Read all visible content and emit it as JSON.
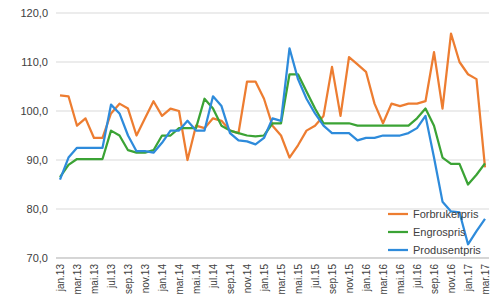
{
  "chart_data": {
    "type": "line",
    "categories": [
      "jan.13",
      null,
      "mar.13",
      null,
      "mai.13",
      null,
      "jul.13",
      null,
      "sep.13",
      null,
      "nov.13",
      null,
      "jan.14",
      null,
      "mar.14",
      null,
      "mai.14",
      null,
      "jul.14",
      null,
      "sep.14",
      null,
      "nov.14",
      null,
      "jan.15",
      null,
      "mar.15",
      null,
      "mai.15",
      null,
      "jul.15",
      null,
      "sep.15",
      null,
      "nov.15",
      null,
      "jan.16",
      null,
      "mar.16",
      null,
      "mai.16",
      null,
      "jul.16",
      null,
      "sep.16",
      null,
      "nov.16",
      null,
      "jan.17",
      null,
      "mar.17"
    ],
    "series": [
      {
        "name": "Forbrukerpris",
        "color": "#ED7D31",
        "values": [
          103.2,
          103,
          97,
          98.5,
          94.5,
          94.5,
          99.5,
          101.5,
          100.5,
          95,
          98.5,
          102,
          99,
          100.5,
          100,
          90,
          97,
          96.5,
          98.5,
          98,
          96,
          95.5,
          106,
          106,
          102.5,
          97,
          95,
          90.5,
          93,
          96,
          97,
          99,
          109,
          99,
          111,
          109.5,
          108,
          101.5,
          97.5,
          101.5,
          101,
          101.5,
          101.5,
          102,
          112,
          100.5,
          115.8,
          110,
          107.5,
          106.5,
          88.5
        ]
      },
      {
        "name": "Engrospris",
        "color": "#3BA335",
        "values": [
          86.5,
          89,
          90.2,
          90.2,
          90.2,
          90.2,
          96,
          95,
          92,
          91.5,
          91.5,
          92,
          95,
          95,
          96.5,
          96.5,
          96.5,
          102.5,
          100.5,
          97,
          96,
          95.5,
          95,
          94.8,
          95,
          97.5,
          97.5,
          107.5,
          107.5,
          104,
          100.5,
          97.5,
          97.5,
          97.5,
          97.5,
          97,
          97,
          97,
          97,
          97,
          97,
          97,
          98.5,
          100.5,
          97,
          90.5,
          89.2,
          89.2,
          85,
          87,
          89.3
        ]
      },
      {
        "name": "Produsentpris",
        "color": "#2E8BDB",
        "values": [
          86,
          90.5,
          92.5,
          92.5,
          92.5,
          92.5,
          101.3,
          99.5,
          95,
          91.8,
          91.8,
          91.5,
          93.5,
          96,
          96,
          98,
          96,
          96,
          103,
          101,
          95.5,
          94,
          93.8,
          93.2,
          94.5,
          98.5,
          98,
          112.8,
          106.5,
          102.5,
          99.5,
          97,
          95.5,
          95.5,
          95.5,
          94,
          94.5,
          94.5,
          95,
          95,
          95,
          95.5,
          96.5,
          99,
          90.5,
          81.5,
          79.5,
          79.3,
          72.8,
          75.5,
          78
        ]
      }
    ],
    "ylim": [
      70,
      120
    ],
    "yticks": [
      {
        "value": 70,
        "label": "70,0"
      },
      {
        "value": 80,
        "label": "80,0"
      },
      {
        "value": 90,
        "label": "90,0"
      },
      {
        "value": 100,
        "label": "100,0"
      },
      {
        "value": 110,
        "label": "110,0"
      },
      {
        "value": 120,
        "label": "120,0"
      }
    ],
    "grid": true,
    "legend": "right"
  }
}
